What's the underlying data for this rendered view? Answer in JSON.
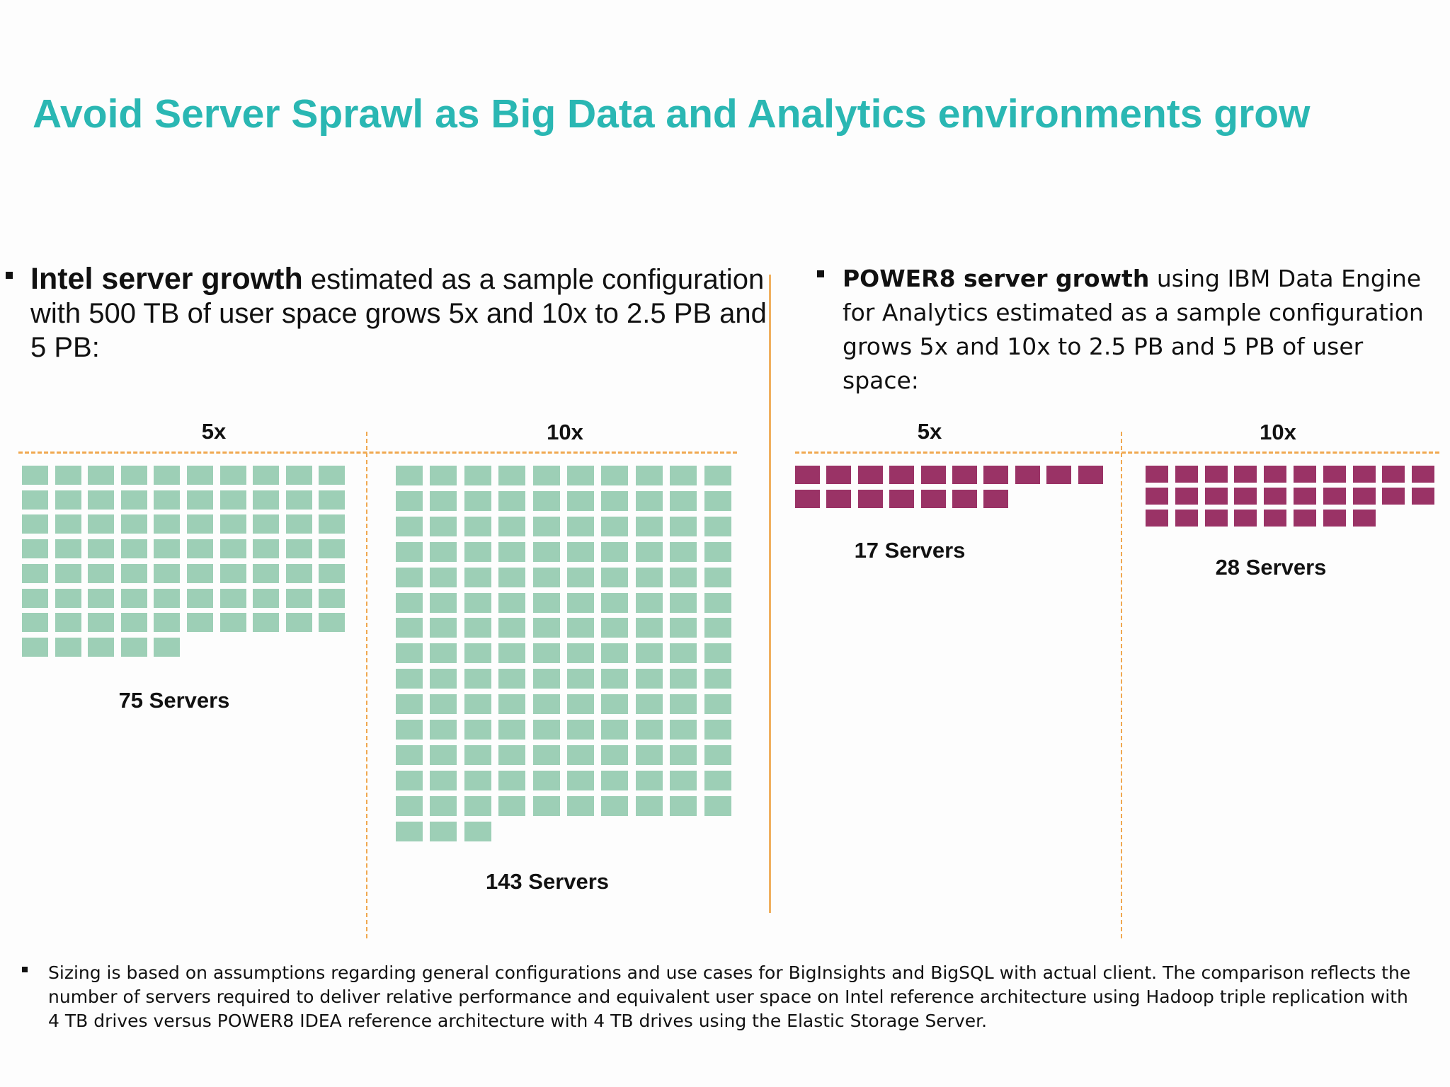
{
  "title": "Avoid Server Sprawl as Big Data and Analytics environments grow",
  "intel": {
    "heading_bold": "Intel server growth",
    "heading_rest": " estimated as a sample configuration with 500 TB of user space grows 5x and 10x to 2.5 PB and 5 PB:",
    "label_5x": "5x",
    "label_10x": "10x",
    "count_5x": 75,
    "count_10x": 143,
    "caption_5x": "75 Servers",
    "caption_10x": "143 Servers",
    "color": "#9dcfb6"
  },
  "power8": {
    "heading_bold": "POWER8 server growth",
    "heading_rest": " using IBM Data Engine for Analytics estimated as a sample configuration grows 5x and 10x to 2.5 PB and 5 PB of user space:",
    "label_5x": "5x",
    "label_10x": "10x",
    "count_5x": 17,
    "count_10x": 28,
    "caption_5x": "17 Servers",
    "caption_10x": "28 Servers",
    "color": "#9a3366"
  },
  "footnote": "Sizing is based on assumptions regarding general configurations and use cases for BigInsights and BigSQL with actual client.  The comparison reflects the number of servers required to deliver relative performance and equivalent user space on Intel reference architecture using Hadoop triple replication with 4 TB drives versus POWER8 IDEA reference architecture with 4 TB drives using the Elastic Storage Server.",
  "accent_color": "#2ab7b3",
  "divider_color": "#f0a850"
}
